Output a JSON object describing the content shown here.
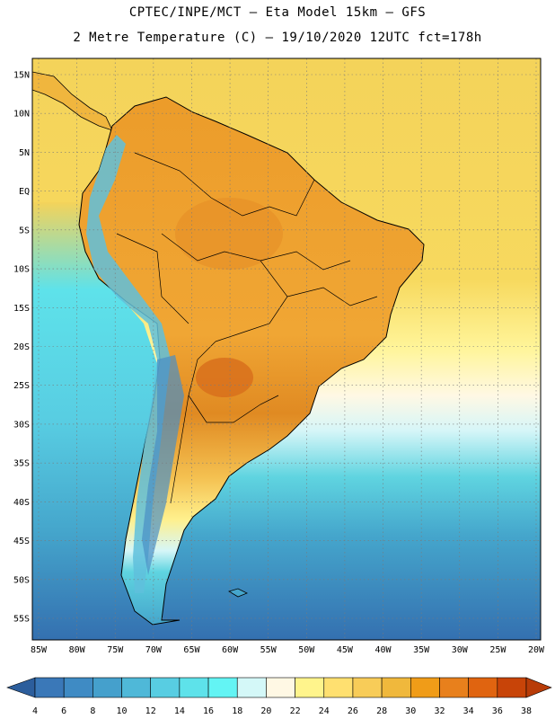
{
  "title_line1": "CPTEC/INPE/MCT –  Eta Model 15km – GFS",
  "title_line2": "2 Metre Temperature (C) – 19/10/2020 12UTC fct=178h",
  "lat_labels": [
    "15N",
    "10N",
    "5N",
    "EQ",
    "5S",
    "10S",
    "15S",
    "20S",
    "25S",
    "30S",
    "35S",
    "40S",
    "45S",
    "50S",
    "55S"
  ],
  "lon_labels": [
    "85W",
    "80W",
    "75W",
    "70W",
    "65W",
    "60W",
    "55W",
    "50W",
    "45W",
    "40W",
    "35W",
    "30W",
    "25W",
    "20W"
  ],
  "colorbar": {
    "ticks": [
      "4",
      "6",
      "8",
      "10",
      "12",
      "14",
      "16",
      "18",
      "20",
      "22",
      "24",
      "26",
      "28",
      "30",
      "32",
      "34",
      "36",
      "38"
    ],
    "colors": [
      "#3a78b8",
      "#3f8bc4",
      "#45a0cc",
      "#4fb8d8",
      "#58cde2",
      "#5ee2ea",
      "#63f4f4",
      "#d4f8f8",
      "#fff8e4",
      "#fff48c",
      "#ffe070",
      "#f8cc58",
      "#f0b83c",
      "#f09c18",
      "#e8801c",
      "#e06410",
      "#c84408"
    ],
    "low_color": "#2c5e9c",
    "high_color": "#b83c08"
  },
  "ocean_colors": {
    "tropical": "#f4d35a",
    "subtropical": "#fff59a",
    "mid": "#d6f6f8",
    "cool": "#5fd4e0",
    "cold": "#45a6cc",
    "coldest": "#3470b0"
  },
  "land_colors": {
    "hot": "#e89a2c",
    "warm": "#f0b63e",
    "hottest": "#d8701c",
    "andes_cold": "#4a8ec4",
    "andes_mid": "#68c4dc"
  }
}
